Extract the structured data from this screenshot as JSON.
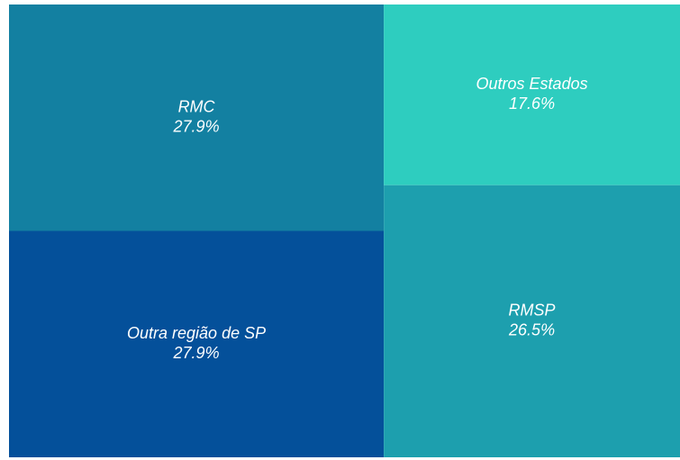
{
  "chart_data": {
    "type": "treemap",
    "categories": [
      "RMC",
      "Outra região de SP",
      "Outros Estados",
      "RMSP"
    ],
    "values": [
      27.9,
      27.9,
      17.6,
      26.5
    ],
    "value_labels": [
      "27.9%",
      "27.9%",
      "17.6%",
      "26.5%"
    ],
    "colors": [
      "#1380a1",
      "#04509a",
      "#2ecdbf",
      "#1d9fae"
    ]
  }
}
